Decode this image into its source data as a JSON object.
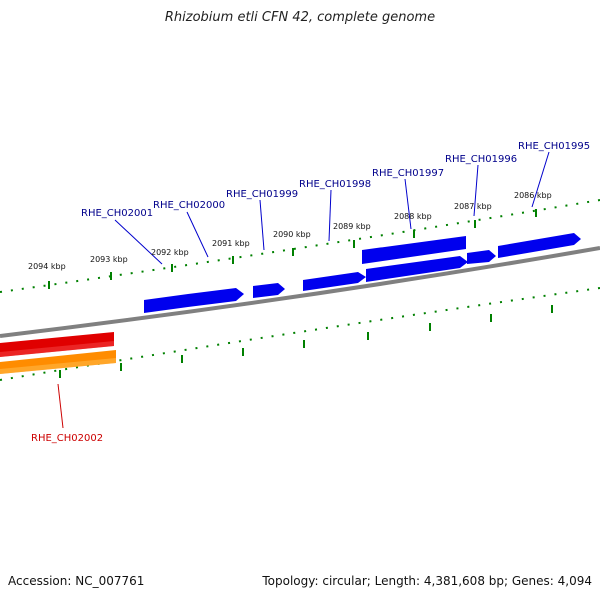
{
  "title": "Rhizobium etli CFN 42, complete genome",
  "accession_label": "Accession: NC_007761",
  "summary_label": "Topology: circular; Length: 4,381,608 bp; Genes: 4,094",
  "colors": {
    "backbone": "#808080",
    "forward_gene": "#0000ee",
    "reverse_gene_top": "#e00000",
    "reverse_gene_bottom": "#ff8c00",
    "tick": "#008000",
    "forward_label": "#00008b",
    "reverse_label": "#cc0000"
  },
  "ticks_outer": [
    "2094 kbp",
    "2093 kbp",
    "2092 kbp",
    "2091 kbp",
    "2090 kbp",
    "2089 kbp",
    "2088 kbp",
    "2087 kbp",
    "2086 kbp"
  ],
  "gene_labels": {
    "forward": [
      "RHE_CH02001",
      "RHE_CH02000",
      "RHE_CH01999",
      "RHE_CH01998",
      "RHE_CH01997",
      "RHE_CH01996",
      "RHE_CH01995"
    ],
    "reverse": [
      "RHE_CH02002"
    ]
  }
}
